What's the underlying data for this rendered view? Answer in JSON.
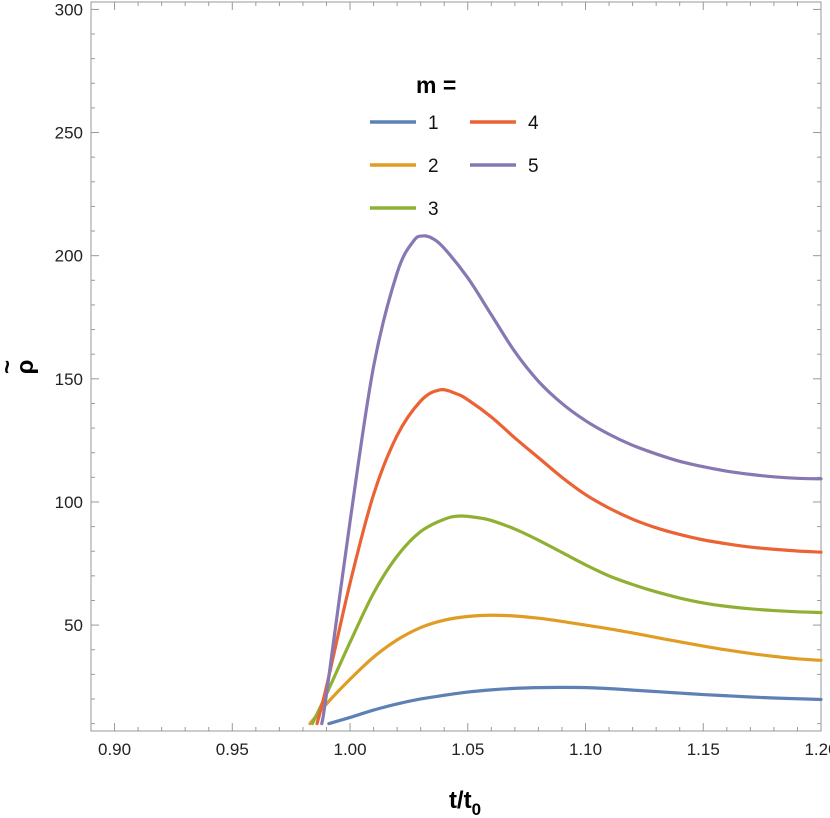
{
  "chart_data": {
    "type": "line",
    "xlabel": "t/t",
    "xlabel_sub": "0",
    "ylabel": "ρ",
    "ylabel_accent": "~",
    "xlim": [
      0.89,
      1.2
    ],
    "ylim": [
      7,
      303
    ],
    "x_ticks": [
      0.9,
      0.95,
      1.0,
      1.05,
      1.1,
      1.15,
      1.2
    ],
    "x_tick_labels": [
      "0.90",
      "0.95",
      "1.00",
      "1.05",
      "1.10",
      "1.15",
      "1.20"
    ],
    "y_ticks": [
      50,
      100,
      150,
      200,
      250,
      300
    ],
    "y_tick_labels": [
      "50",
      "100",
      "150",
      "200",
      "250",
      "300"
    ],
    "grid": false,
    "legend": {
      "title": "m =",
      "placement": "top-center",
      "columns": 2
    },
    "series": [
      {
        "name": "1",
        "color": "#5E81B5",
        "points": [
          [
            0.991,
            10
          ],
          [
            1.0,
            12.5
          ],
          [
            1.01,
            15.5
          ],
          [
            1.02,
            18
          ],
          [
            1.03,
            20
          ],
          [
            1.04,
            21.5
          ],
          [
            1.05,
            22.8
          ],
          [
            1.06,
            23.7
          ],
          [
            1.07,
            24.3
          ],
          [
            1.08,
            24.6
          ],
          [
            1.09,
            24.7
          ],
          [
            1.1,
            24.6
          ],
          [
            1.11,
            24.2
          ],
          [
            1.12,
            23.6
          ],
          [
            1.13,
            23
          ],
          [
            1.14,
            22.4
          ],
          [
            1.15,
            21.8
          ],
          [
            1.16,
            21.3
          ],
          [
            1.17,
            20.8
          ],
          [
            1.18,
            20.4
          ],
          [
            1.19,
            20.1
          ],
          [
            1.2,
            19.8
          ]
        ]
      },
      {
        "name": "2",
        "color": "#E19C24",
        "points": [
          [
            0.983,
            10
          ],
          [
            0.99,
            18
          ],
          [
            1.0,
            28
          ],
          [
            1.01,
            37
          ],
          [
            1.02,
            44
          ],
          [
            1.03,
            49
          ],
          [
            1.04,
            52
          ],
          [
            1.05,
            53.5
          ],
          [
            1.06,
            54
          ],
          [
            1.07,
            53.7
          ],
          [
            1.08,
            52.8
          ],
          [
            1.09,
            51.5
          ],
          [
            1.1,
            50
          ],
          [
            1.11,
            48.5
          ],
          [
            1.12,
            46.8
          ],
          [
            1.13,
            45
          ],
          [
            1.14,
            43.2
          ],
          [
            1.15,
            41.5
          ],
          [
            1.16,
            39.9
          ],
          [
            1.17,
            38.5
          ],
          [
            1.18,
            37.3
          ],
          [
            1.19,
            36.3
          ],
          [
            1.2,
            35.7
          ]
        ]
      },
      {
        "name": "3",
        "color": "#8FB032",
        "points": [
          [
            0.984,
            10
          ],
          [
            0.99,
            22
          ],
          [
            1.0,
            43
          ],
          [
            1.01,
            63
          ],
          [
            1.02,
            78
          ],
          [
            1.03,
            88
          ],
          [
            1.04,
            93
          ],
          [
            1.047,
            94.3
          ],
          [
            1.055,
            93.5
          ],
          [
            1.06,
            92.5
          ],
          [
            1.07,
            89
          ],
          [
            1.08,
            84.5
          ],
          [
            1.09,
            79.5
          ],
          [
            1.1,
            74.5
          ],
          [
            1.11,
            70
          ],
          [
            1.12,
            66.5
          ],
          [
            1.13,
            63.5
          ],
          [
            1.14,
            61
          ],
          [
            1.15,
            59
          ],
          [
            1.16,
            57.6
          ],
          [
            1.17,
            56.6
          ],
          [
            1.18,
            55.9
          ],
          [
            1.19,
            55.4
          ],
          [
            1.2,
            55.1
          ]
        ]
      },
      {
        "name": "4",
        "color": "#EB6235",
        "points": [
          [
            0.986,
            10
          ],
          [
            0.99,
            25
          ],
          [
            1.0,
            67
          ],
          [
            1.01,
            103
          ],
          [
            1.02,
            127
          ],
          [
            1.03,
            141
          ],
          [
            1.038,
            145.5
          ],
          [
            1.045,
            144
          ],
          [
            1.05,
            141.5
          ],
          [
            1.06,
            134.5
          ],
          [
            1.07,
            126
          ],
          [
            1.08,
            118
          ],
          [
            1.09,
            110
          ],
          [
            1.1,
            103
          ],
          [
            1.11,
            97.5
          ],
          [
            1.12,
            93
          ],
          [
            1.13,
            89.5
          ],
          [
            1.14,
            86.8
          ],
          [
            1.15,
            84.6
          ],
          [
            1.16,
            83
          ],
          [
            1.17,
            81.7
          ],
          [
            1.18,
            80.8
          ],
          [
            1.19,
            80.1
          ],
          [
            1.2,
            79.6
          ]
        ]
      },
      {
        "name": "5",
        "color": "#8778B3",
        "points": [
          [
            0.988,
            10
          ],
          [
            0.99,
            22
          ],
          [
            1.0,
            92
          ],
          [
            1.01,
            155
          ],
          [
            1.02,
            193
          ],
          [
            1.027,
            206
          ],
          [
            1.031,
            208
          ],
          [
            1.035,
            207
          ],
          [
            1.04,
            203
          ],
          [
            1.05,
            191
          ],
          [
            1.06,
            176
          ],
          [
            1.07,
            161
          ],
          [
            1.08,
            149
          ],
          [
            1.09,
            140
          ],
          [
            1.1,
            133
          ],
          [
            1.11,
            127.5
          ],
          [
            1.12,
            123
          ],
          [
            1.13,
            119.5
          ],
          [
            1.14,
            116.5
          ],
          [
            1.15,
            114.3
          ],
          [
            1.16,
            112.5
          ],
          [
            1.17,
            111.2
          ],
          [
            1.18,
            110.2
          ],
          [
            1.19,
            109.6
          ],
          [
            1.2,
            109.4
          ]
        ]
      }
    ]
  }
}
